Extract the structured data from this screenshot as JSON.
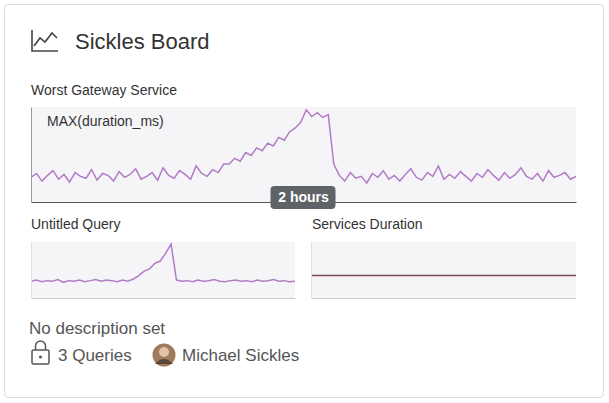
{
  "card": {
    "title": "Sickles Board",
    "description": "No description set",
    "queries": "3 Queries",
    "owner": "Michael Sickles"
  },
  "chart_data": [
    {
      "type": "line",
      "title": "Worst Gateway Service",
      "annotation": "2 hours",
      "tick_labels": false,
      "xlim": [
        0,
        99
      ],
      "ylim": [
        0,
        100
      ],
      "series": [
        {
          "name": "MAX(duration_ms)",
          "color": "#b07cc6",
          "values": [
            26,
            30,
            22,
            28,
            33,
            24,
            29,
            21,
            31,
            27,
            25,
            34,
            23,
            30,
            28,
            22,
            32,
            26,
            29,
            35,
            24,
            27,
            31,
            23,
            36,
            28,
            25,
            33,
            29,
            24,
            38,
            30,
            27,
            34,
            31,
            40,
            40,
            46,
            43,
            52,
            49,
            57,
            54,
            62,
            59,
            68,
            65,
            74,
            78,
            84,
            97,
            90,
            94,
            89,
            92,
            40,
            28,
            22,
            31,
            25,
            27,
            20,
            30,
            26,
            33,
            24,
            28,
            22,
            29,
            35,
            26,
            23,
            31,
            27,
            38,
            24,
            29,
            25,
            32,
            27,
            22,
            30,
            26,
            34,
            28,
            23,
            31,
            25,
            29,
            36,
            27,
            24,
            30,
            22,
            33,
            26,
            28,
            31,
            24,
            27
          ]
        }
      ]
    },
    {
      "type": "line",
      "title": "Untitled Query",
      "tick_labels": false,
      "xlim": [
        0,
        49
      ],
      "ylim": [
        0,
        100
      ],
      "series": [
        {
          "color": "#b07cc6",
          "values": [
            30,
            32,
            29,
            31,
            30,
            33,
            28,
            31,
            30,
            32,
            29,
            31,
            33,
            30,
            32,
            31,
            29,
            32,
            30,
            34,
            40,
            48,
            52,
            62,
            66,
            80,
            96,
            32,
            30,
            31,
            29,
            32,
            30,
            31,
            33,
            30,
            29,
            31,
            32,
            30,
            31,
            29,
            32,
            30,
            31,
            33,
            30,
            31,
            29,
            30
          ]
        }
      ]
    },
    {
      "type": "line",
      "title": "Services Duration",
      "tick_labels": false,
      "xlim": [
        0,
        19
      ],
      "ylim": [
        0,
        100
      ],
      "series": [
        {
          "color": "#7b4b5e",
          "values": [
            40,
            40,
            40,
            40,
            40,
            40,
            40,
            40,
            40,
            40,
            40,
            40,
            40,
            40,
            40,
            40,
            40,
            40,
            40,
            40
          ]
        }
      ]
    }
  ]
}
